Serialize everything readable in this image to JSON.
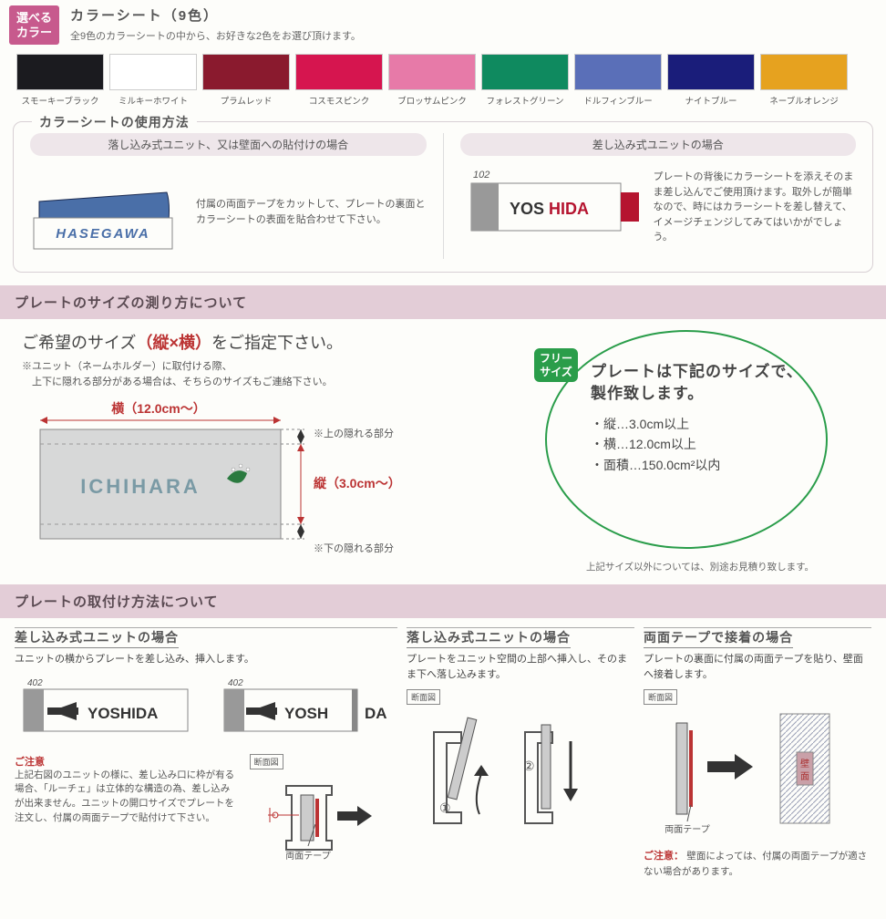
{
  "header": {
    "badge_l1": "選べる",
    "badge_l2": "カラー",
    "title": "カラーシート（9色）",
    "sub": "全9色のカラーシートの中から、お好きな2色をお選び頂けます。"
  },
  "swatches": [
    {
      "label": "スモーキーブラック",
      "color": "#1b1b1f"
    },
    {
      "label": "ミルキーホワイト",
      "color": "#ffffff"
    },
    {
      "label": "プラムレッド",
      "color": "#8a1a2e"
    },
    {
      "label": "コスモスピンク",
      "color": "#d6154f"
    },
    {
      "label": "ブロッサムピンク",
      "color": "#e77aa8"
    },
    {
      "label": "フォレストグリーン",
      "color": "#0f8a5f"
    },
    {
      "label": "ドルフィンブルー",
      "color": "#5a6fb8"
    },
    {
      "label": "ナイトブルー",
      "color": "#1a1d7a"
    },
    {
      "label": "ネーブルオレンジ",
      "color": "#e6a21f"
    }
  ],
  "usage": {
    "title": "カラーシートの使用方法",
    "left": {
      "pill": "落し込み式ユニット、又は壁面への貼付けの場合",
      "name": "HASEGAWA",
      "desc": "付属の両面テープをカットして、プレートの裏面とカラーシートの表面を貼合わせて下さい。",
      "blue": "#4a6fa8"
    },
    "right": {
      "pill": "差し込み式ユニットの場合",
      "num": "102",
      "name1": "YOS",
      "name2": "HIDA",
      "desc": "プレートの背後にカラーシートを添えそのまま差し込んでご使用頂けます。取外しが簡単なので、時にはカラーシートを差し替えて、イメージチェンジしてみてはいかがでしょう。",
      "red": "#b5142f"
    }
  },
  "size": {
    "band": "プレートのサイズの測り方について",
    "head_pre": "ご希望のサイズ",
    "head_paren": "（縦×横）",
    "head_post": "をご指定下さい。",
    "note": "※ユニット（ネームホルダー）に取付ける際、\n　上下に隠れる部分がある場合は、そちらのサイズもご連絡下さい。",
    "w_label": "横（12.0cm～）",
    "h_label": "縦（3.0cm～）",
    "hash_top": "※上の隠れる部分",
    "hash_bot": "※下の隠れる部分",
    "sample_name": "ICHIHARA",
    "badge_l1": "フリー",
    "badge_l2": "サイズ",
    "gc_head": "プレートは下記のサイズで、製作致します。",
    "gc_l1": "・縦…3.0cm以上",
    "gc_l2": "・横…12.0cm以上",
    "gc_l3": "・面積…150.0cm²以内",
    "foot": "上記サイズ以外については、別途お見積り致します。"
  },
  "mount": {
    "band": "プレートの取付け方法について",
    "col1": {
      "title": "差し込み式ユニットの場合",
      "sub": "ユニットの横からプレートを差し込み、挿入します。",
      "num": "402",
      "name": "YOSHIDA",
      "name_partial_a": "YOSH",
      "name_partial_b": "DA",
      "caution_h": "ご注意",
      "caution": "上記右図のユニットの様に、差し込み口に枠が有る場合、「ルーチェ」は立体的な構造の為、差し込みが出来ません。ユニットの開口サイズでプレートを注文し、付属の両面テープで貼付けて下さい。",
      "sect": "断面図",
      "tape_label": "両面テープ"
    },
    "col2": {
      "title": "落し込み式ユニットの場合",
      "sub": "プレートをユニット空間の上部へ挿入し、そのまま下へ落し込みます。",
      "sect": "断面図",
      "n1": "①",
      "n2": "②"
    },
    "col3": {
      "title": "両面テープで接着の場合",
      "sub": "プレートの裏面に付属の両面テープを貼り、壁面へ接着します。",
      "sect": "断面図",
      "wall": "壁面",
      "tape_label": "両面テープ",
      "caution_h": "ご注意：",
      "caution": "壁面によっては、付属の両面テープが適さない場合があります。"
    }
  },
  "colors": {
    "band": "#e3cdd7",
    "badge": "#c75a8d",
    "green": "#2a9d4a",
    "red": "#b33333"
  }
}
